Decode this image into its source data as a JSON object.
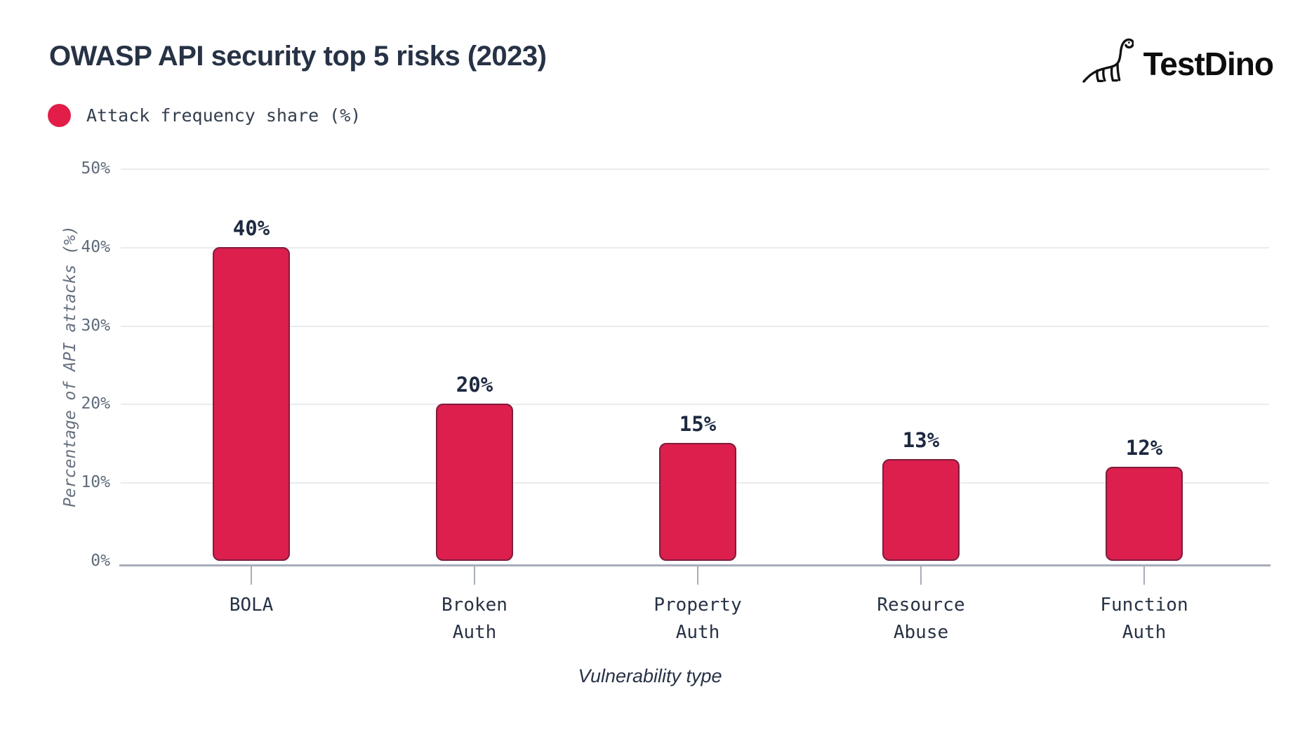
{
  "header": {
    "title": "OWASP API security top 5 risks (2023)",
    "logo_text": "TestDino"
  },
  "legend": {
    "label": "Attack frequency share (%)",
    "swatch_color": "#e11d48"
  },
  "chart_data": {
    "type": "bar",
    "title": "OWASP API security top 5 risks (2023)",
    "xlabel": "Vulnerability type",
    "ylabel": "Percentage of API attacks (%)",
    "legend_entries": [
      "Attack frequency share (%)"
    ],
    "legend_position": "top-left",
    "grid": true,
    "ylim": [
      0,
      50
    ],
    "yticks": [
      0,
      10,
      20,
      30,
      40,
      50
    ],
    "ytick_labels": [
      "0%",
      "10%",
      "20%",
      "30%",
      "40%",
      "50%"
    ],
    "categories": [
      "BOLA",
      "Broken Auth",
      "Property Auth",
      "Resource Abuse",
      "Function Auth"
    ],
    "category_label_lines": [
      [
        "BOLA"
      ],
      [
        "Broken",
        "Auth"
      ],
      [
        "Property",
        "Auth"
      ],
      [
        "Resource",
        "Abuse"
      ],
      [
        "Function",
        "Auth"
      ]
    ],
    "series": [
      {
        "name": "Attack frequency share (%)",
        "values": [
          40,
          20,
          15,
          13,
          12
        ],
        "value_labels": [
          "40%",
          "20%",
          "15%",
          "13%",
          "12%"
        ],
        "bar_color": "#dc1f4d",
        "bar_border_color": "#7f1d3c"
      }
    ]
  }
}
